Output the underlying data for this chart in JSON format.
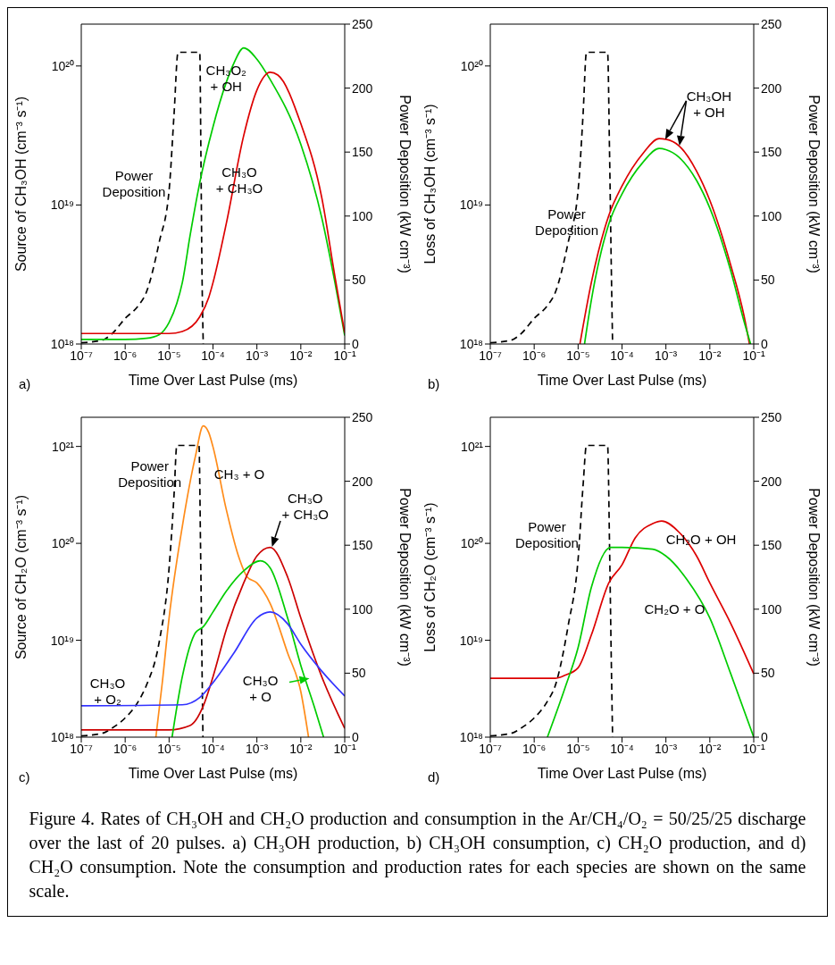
{
  "chart_data": [
    {
      "type": "line",
      "xlabel": "Time Over Last Pulse (ms)",
      "ylabel": "Source of CH₃OH (cm⁻³ s⁻¹)",
      "y2label": "Power Deposition (kW cm⁻³)",
      "log": "xy",
      "marker": "none",
      "annotations": [
        "a)"
      ],
      "xlim": [
        1e-07,
        0.1
      ],
      "xticks": [
        {
          "value": 1e-07,
          "label": "10⁻⁷"
        },
        {
          "value": 1e-06,
          "label": "10⁻⁶"
        },
        {
          "value": 1e-05,
          "label": "10⁻⁵"
        },
        {
          "value": 0.0001,
          "label": "10⁻⁴"
        },
        {
          "value": 0.001,
          "label": "10⁻³"
        },
        {
          "value": 0.01,
          "label": "10⁻²"
        },
        {
          "value": 0.1,
          "label": "10⁻¹"
        }
      ],
      "ylim": [
        1e+18,
        2e+20
      ],
      "yticks": [
        {
          "value": 1e+18,
          "label": "10¹⁸"
        },
        {
          "value": 1e+19,
          "label": "10¹⁹"
        },
        {
          "value": 1e+20,
          "label": "10²⁰"
        }
      ],
      "y2lim": [
        0,
        250
      ],
      "y2ticks": [
        0,
        50,
        100,
        150,
        200,
        250
      ],
      "series": [
        {
          "name": "Power Deposition",
          "color": "#000000",
          "axis": "y2",
          "line_style": "dashed",
          "x": [
            1e-07,
            3e-07,
            5e-07,
            1e-06,
            2e-06,
            3e-06,
            6e-06,
            1e-05,
            1.3e-05,
            1.6e-05,
            5e-05,
            5.3e-05,
            5.6e-05,
            6e-05
          ],
          "values": [
            1,
            3,
            8,
            20,
            30,
            40,
            80,
            120,
            180,
            228,
            228,
            150,
            60,
            0
          ]
        },
        {
          "name": "CH₃O₂ + OH",
          "color": "#00cc00",
          "x": [
            1e-07,
            1e-06,
            3e-06,
            6e-06,
            1e-05,
            1.5e-05,
            2e-05,
            3e-05,
            5e-05,
            0.0001,
            0.0002,
            0.0003,
            0.0005,
            0.001,
            0.002,
            0.01,
            0.03,
            0.06,
            0.1
          ],
          "values": [
            1.08e+18,
            1.08e+18,
            1.1e+18,
            1.17e+18,
            1.43e+18,
            1.96e+18,
            2.76e+18,
            6e+18,
            1.45e+19,
            3.65e+19,
            7.6e+19,
            1.05e+20,
            1.35e+20,
            1.12e+20,
            8e+19,
            2.73e+19,
            8.1e+18,
            2.76e+18,
            1.15e+18
          ]
        },
        {
          "name": "CH₃O + CH₃O",
          "color": "#dd0000",
          "x": [
            1e-07,
            1e-05,
            2e-05,
            5e-05,
            8e-05,
            0.0001,
            0.0002,
            0.0005,
            0.001,
            0.002,
            0.003,
            0.01,
            0.03,
            0.06,
            0.1
          ],
          "values": [
            1.19e+18,
            1.19e+18,
            1.23e+18,
            1.57e+18,
            2.16e+18,
            2.76e+18,
            7.3e+18,
            3.15e+19,
            6.7e+19,
            9e+19,
            8.6e+19,
            3.85e+19,
            1.13e+19,
            3.04e+18,
            1.2e+18
          ]
        }
      ]
    },
    {
      "type": "line",
      "xlabel": "Time Over Last Pulse (ms)",
      "ylabel": "Loss of CH₃OH (cm⁻³ s⁻¹)",
      "y2label": "Power Deposition (kW cm⁻³)",
      "log": "xy",
      "marker": "none",
      "annotations": [
        "b)"
      ],
      "xlim": [
        1e-07,
        0.1
      ],
      "xticks": [
        {
          "value": 1e-07,
          "label": "10⁻⁷"
        },
        {
          "value": 1e-06,
          "label": "10⁻⁶"
        },
        {
          "value": 1e-05,
          "label": "10⁻⁵"
        },
        {
          "value": 0.0001,
          "label": "10⁻⁴"
        },
        {
          "value": 0.001,
          "label": "10⁻³"
        },
        {
          "value": 0.01,
          "label": "10⁻²"
        },
        {
          "value": 0.1,
          "label": "10⁻¹"
        }
      ],
      "ylim": [
        1e+18,
        2e+20
      ],
      "yticks": [
        {
          "value": 1e+18,
          "label": "10¹⁸"
        },
        {
          "value": 1e+19,
          "label": "10¹⁹"
        },
        {
          "value": 1e+20,
          "label": "10²⁰"
        }
      ],
      "y2lim": [
        0,
        250
      ],
      "y2ticks": [
        0,
        50,
        100,
        150,
        200,
        250
      ],
      "series": [
        {
          "name": "Power Deposition",
          "color": "#000000",
          "axis": "y2",
          "line_style": "dashed",
          "x": [
            1e-07,
            3e-07,
            5e-07,
            1e-06,
            2e-06,
            3e-06,
            6e-06,
            1e-05,
            1.3e-05,
            1.55e-05,
            4.7e-05,
            5.2e-05,
            5.7e-05,
            6.1e-05
          ],
          "values": [
            1,
            3,
            8,
            20,
            30,
            40,
            80,
            120,
            180,
            228,
            228,
            150,
            60,
            0
          ]
        },
        {
          "name": "CH₃OH + OH",
          "color": "#dd0000",
          "x": [
            1.1e-05,
            2e-05,
            5e-05,
            0.0001,
            0.0003,
            0.0007,
            0.001,
            0.002,
            0.005,
            0.01,
            0.03,
            0.06,
            0.08
          ],
          "values": [
            1e+18,
            2.76e+18,
            8.4e+18,
            1.37e+19,
            2.35e+19,
            3e+19,
            2.97e+19,
            2.66e+19,
            1.75e+19,
            1.08e+19,
            3.68e+18,
            1.6e+18,
            1e+18
          ]
        },
        {
          "color": "#00cc00",
          "x": [
            1.4e-05,
            2e-05,
            5e-05,
            0.0001,
            0.0003,
            0.0007,
            0.001,
            0.002,
            0.005,
            0.01,
            0.03,
            0.06,
            0.085
          ],
          "values": [
            1e+18,
            2.06e+18,
            7.3e+18,
            1.2e+19,
            2.03e+19,
            2.55e+19,
            2.5e+19,
            2.2e+19,
            1.5e+19,
            9.5e+18,
            3.35e+18,
            1.46e+18,
            1e+18
          ]
        }
      ]
    },
    {
      "type": "line",
      "xlabel": "Time Over Last Pulse (ms)",
      "ylabel": "Source of CH₂O (cm⁻³ s⁻¹)",
      "y2label": "Power Deposition (kW cm⁻³)",
      "log": "xy",
      "marker": "none",
      "annotations": [
        "c)"
      ],
      "xlim": [
        1e-07,
        0.1
      ],
      "xticks": [
        {
          "value": 1e-07,
          "label": "10⁻⁷"
        },
        {
          "value": 1e-06,
          "label": "10⁻⁶"
        },
        {
          "value": 1e-05,
          "label": "10⁻⁵"
        },
        {
          "value": 0.0001,
          "label": "10⁻⁴"
        },
        {
          "value": 0.001,
          "label": "10⁻³"
        },
        {
          "value": 0.01,
          "label": "10⁻²"
        },
        {
          "value": 0.1,
          "label": "10⁻¹"
        }
      ],
      "ylim": [
        1e+18,
        2e+21
      ],
      "yticks": [
        {
          "value": 1e+18,
          "label": "10¹⁸"
        },
        {
          "value": 1e+19,
          "label": "10¹⁹"
        },
        {
          "value": 1e+20,
          "label": "10²⁰"
        },
        {
          "value": 1e+21,
          "label": "10²¹"
        }
      ],
      "y2lim": [
        0,
        250
      ],
      "y2ticks": [
        0,
        50,
        100,
        150,
        200,
        250
      ],
      "series": [
        {
          "name": "Power Deposition",
          "color": "#000000",
          "axis": "y2",
          "line_style": "dashed",
          "x": [
            1e-07,
            3e-07,
            5e-07,
            1e-06,
            2e-06,
            3e-06,
            6e-06,
            1e-05,
            1.3e-05,
            1.5e-05,
            4.8e-05,
            5.2e-05,
            5.6e-05,
            5.9e-05
          ],
          "values": [
            1,
            3,
            7,
            15,
            28,
            40,
            75,
            132,
            190,
            228,
            228,
            150,
            60,
            0
          ]
        },
        {
          "name": "CH₃ + O",
          "color": "#ff8c1a",
          "x": [
            5e-06,
            7e-06,
            1e-05,
            2e-05,
            4e-05,
            6e-05,
            8e-05,
            0.0001,
            0.0002,
            0.0004,
            0.0006,
            0.001,
            0.002,
            0.005,
            0.01,
            0.015
          ],
          "values": [
            1e+18,
            3.65e+18,
            1.7e+19,
            1.49e+20,
            8e+20,
            1.63e+21,
            1.39e+21,
            9.9e+20,
            2.25e+20,
            6.9e+19,
            4.5e+19,
            3.9e+19,
            2.4e+19,
            7.4e+18,
            2.95e+18,
            1e+18
          ]
        },
        {
          "name": "CH₃O + CH₃O",
          "color": "#cc0000",
          "x": [
            1e-07,
            1e-05,
            3e-05,
            6e-05,
            0.0001,
            0.0002,
            0.0005,
            0.001,
            0.002,
            0.005,
            0.01,
            0.03,
            0.1
          ],
          "values": [
            1.19e+18,
            1.19e+18,
            1.32e+18,
            2.1e+18,
            4.2e+18,
            1.28e+19,
            3.9e+19,
            7.4e+19,
            9.1e+19,
            4.5e+19,
            1.7e+19,
            4.2e+18,
            1.23e+18
          ]
        },
        {
          "name": "CH₃O + O",
          "color": "#00cc00",
          "x": [
            1.17e-05,
            2e-05,
            4e-05,
            6e-05,
            0.0001,
            0.0002,
            0.0005,
            0.0012,
            0.002,
            0.005,
            0.01,
            0.02,
            0.033
          ],
          "values": [
            1e+18,
            4.2e+18,
            1.2e+19,
            1.38e+19,
            1.96e+19,
            3.2e+19,
            5.2e+19,
            6.6e+19,
            5.6e+19,
            1.7e+19,
            5.5e+18,
            2.1e+18,
            1e+18
          ]
        },
        {
          "name": "CH₃O + O₂",
          "color": "#3333ff",
          "x": [
            1e-07,
            2e-05,
            5e-05,
            0.0001,
            0.0003,
            0.001,
            0.002,
            0.005,
            0.01,
            0.03,
            0.1
          ],
          "values": [
            2.11e+18,
            2.16e+18,
            2.57e+18,
            3.65e+18,
            7.4e+18,
            1.7e+19,
            1.96e+19,
            1.48e+19,
            9.1e+18,
            4.8e+18,
            2.66e+18
          ]
        }
      ]
    },
    {
      "type": "line",
      "xlabel": "Time Over Last Pulse (ms)",
      "ylabel": "Loss of CH₂O (cm⁻³ s⁻¹)",
      "y2label": "Power Deposition (kW cm⁻³)",
      "log": "xy",
      "marker": "none",
      "annotations": [
        "d)"
      ],
      "xlim": [
        1e-07,
        0.1
      ],
      "xticks": [
        {
          "value": 1e-07,
          "label": "10⁻⁷"
        },
        {
          "value": 1e-06,
          "label": "10⁻⁶"
        },
        {
          "value": 1e-05,
          "label": "10⁻⁵"
        },
        {
          "value": 0.0001,
          "label": "10⁻⁴"
        },
        {
          "value": 0.001,
          "label": "10⁻³"
        },
        {
          "value": 0.01,
          "label": "10⁻²"
        },
        {
          "value": 0.1,
          "label": "10⁻¹"
        }
      ],
      "ylim": [
        1e+18,
        2e+21
      ],
      "yticks": [
        {
          "value": 1e+18,
          "label": "10¹⁸"
        },
        {
          "value": 1e+19,
          "label": "10¹⁹"
        },
        {
          "value": 1e+20,
          "label": "10²⁰"
        },
        {
          "value": 1e+21,
          "label": "10²¹"
        }
      ],
      "y2lim": [
        0,
        250
      ],
      "y2ticks": [
        0,
        50,
        100,
        150,
        200,
        250
      ],
      "series": [
        {
          "name": "Power Deposition",
          "color": "#000000",
          "axis": "y2",
          "line_style": "dashed",
          "x": [
            1e-07,
            3e-07,
            5e-07,
            1e-06,
            2e-06,
            3e-06,
            6e-06,
            1e-05,
            1.3e-05,
            1.55e-05,
            4.7e-05,
            5.2e-05,
            5.7e-05,
            6.1e-05
          ],
          "values": [
            1,
            3,
            7,
            15,
            28,
            40,
            88,
            139,
            197,
            228,
            228,
            150,
            60,
            0
          ]
        },
        {
          "name": "CH₂O + OH",
          "color": "#dd0000",
          "x": [
            1e-07,
            3e-06,
            5e-06,
            1e-05,
            2e-05,
            5e-05,
            0.0001,
            0.0002,
            0.0005,
            0.0008,
            0.002,
            0.005,
            0.01,
            0.03,
            0.1
          ],
          "values": [
            4.05e+18,
            4.05e+18,
            4.35e+18,
            5.2e+18,
            1.13e+19,
            3.9e+19,
            6e+19,
            1.14e+20,
            1.6e+20,
            1.7e+20,
            1.3e+20,
            7.4e+19,
            3.9e+19,
            1.49e+19,
            4.5e+18
          ]
        },
        {
          "name": "CH₂O + O",
          "color": "#00cc00",
          "x": [
            2e-06,
            5e-06,
            1e-05,
            2e-05,
            5.5e-05,
            0.0001,
            0.0005,
            0.001,
            0.003,
            0.01,
            0.03,
            0.1
          ],
          "values": [
            1e+18,
            3.2e+18,
            8.4e+18,
            3.5e+19,
            9.1e+19,
            9.1e+19,
            8.7e+19,
            7.4e+19,
            4.25e+19,
            1.7e+19,
            4.5e+18,
            1e+18
          ]
        }
      ]
    },
    {
      "type": "other",
      "annotations": [
        "Figure 4. Rates of CH₃OH and CH₂O production and consumption in the Ar/CH₄/O₂ = 50/25/25 discharge over the last of 20 pulses.  a) CH₃OH production, b) CH₃OH consumption, c) CH₂O production, and d) CH₂O consumption.  Note the consumption and production rates for each species are shown on the same scale."
      ]
    }
  ]
}
